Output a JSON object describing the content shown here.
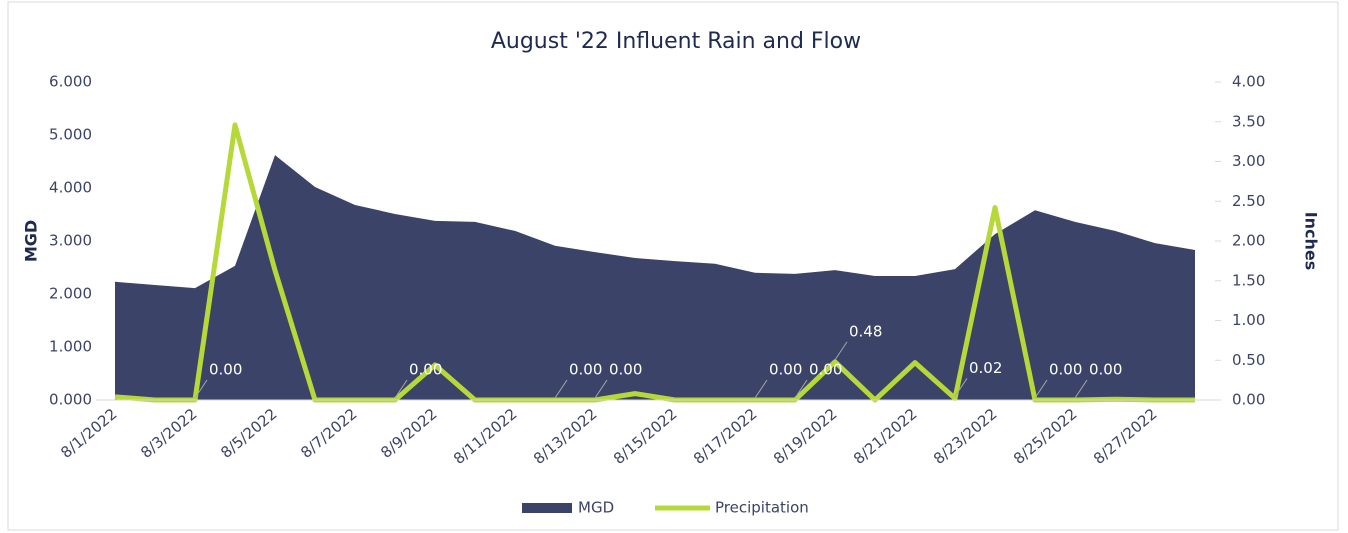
{
  "chart_data": {
    "type": "area-line",
    "title": "August '22 Influent Rain and Flow",
    "ylabel": "MGD",
    "y2label": "Inches",
    "categories": [
      "8/1/2022",
      null,
      "8/3/2022",
      null,
      "8/5/2022",
      null,
      "8/7/2022",
      null,
      "8/9/2022",
      null,
      "8/11/2022",
      null,
      "8/13/2022",
      null,
      "8/15/2022",
      null,
      "8/17/2022",
      null,
      "8/19/2022",
      null,
      "8/21/2022",
      null,
      "8/23/2022",
      null,
      "8/25/2022",
      null,
      "8/27/2022",
      null
    ],
    "ylim": [
      0,
      6
    ],
    "yticks": [
      {
        "value": 0,
        "label": "0.000"
      },
      {
        "value": 1,
        "label": "1.000"
      },
      {
        "value": 2,
        "label": "2.000"
      },
      {
        "value": 3,
        "label": "3.000"
      },
      {
        "value": 4,
        "label": "4.000"
      },
      {
        "value": 5,
        "label": "5.000"
      },
      {
        "value": 6,
        "label": "6.000"
      }
    ],
    "y2lim": [
      0,
      4
    ],
    "y2ticks": [
      {
        "value": 0,
        "label": "0.00"
      },
      {
        "value": 0.5,
        "label": "0.50"
      },
      {
        "value": 1,
        "label": "1.00"
      },
      {
        "value": 1.5,
        "label": "1.50"
      },
      {
        "value": 2,
        "label": "2.00"
      },
      {
        "value": 2.5,
        "label": "2.50"
      },
      {
        "value": 3,
        "label": "3.00"
      },
      {
        "value": 3.5,
        "label": "3.50"
      },
      {
        "value": 4,
        "label": "4.00"
      }
    ],
    "legend": "bottom",
    "series": [
      {
        "name": "MGD",
        "color": "#3b4468",
        "kind": "area",
        "values": [
          2.23,
          2.17,
          2.11,
          2.53,
          4.62,
          4.02,
          3.68,
          3.51,
          3.38,
          3.36,
          3.19,
          2.91,
          2.79,
          2.68,
          2.62,
          2.57,
          2.4,
          2.38,
          2.45,
          2.34,
          2.34,
          2.47,
          3.13,
          3.58,
          3.36,
          3.19,
          2.96,
          2.83
        ]
      },
      {
        "name": "Precipitation",
        "color": "#b7d839",
        "kind": "line",
        "axis": "y2",
        "values": [
          0.04,
          0,
          0,
          3.46,
          1.63,
          0,
          0,
          0,
          0.44,
          0,
          0,
          0,
          0,
          0.08,
          0,
          0,
          0,
          0,
          0.48,
          0,
          0.47,
          0.02,
          2.42,
          0,
          0,
          0.01,
          0,
          0
        ],
        "value_labels": [
          null,
          null,
          "0.00",
          null,
          null,
          null,
          null,
          "0.00",
          null,
          null,
          null,
          "0.00",
          "0.00",
          null,
          null,
          null,
          "0.00",
          "0.00",
          "0.48",
          null,
          null,
          "0.02",
          null,
          "0.00",
          "0.00",
          null,
          null,
          null
        ]
      }
    ]
  }
}
